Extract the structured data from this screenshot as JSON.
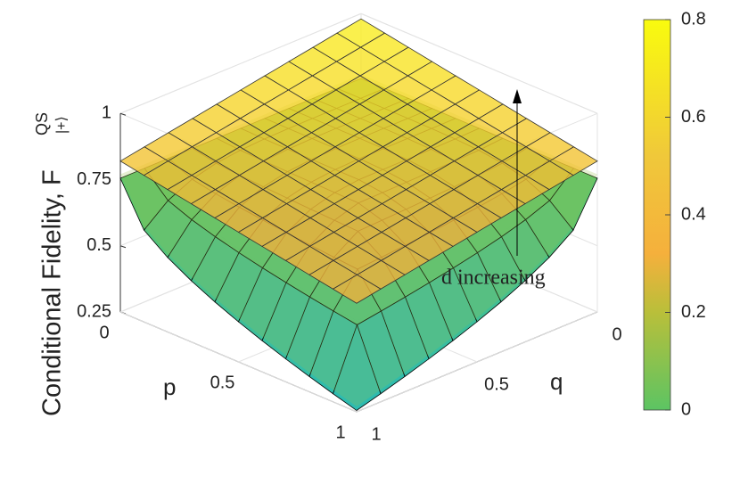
{
  "chart_data": {
    "type": "surface",
    "zlabel": {
      "text": "Conditional Fidelity, F",
      "superscript": "QS",
      "subscript": "|+⟩"
    },
    "xlabel": "p",
    "ylabel": "q",
    "xlim": [
      0,
      1
    ],
    "xticks": [
      0,
      0.5,
      1
    ],
    "ylim": [
      0,
      1
    ],
    "yticks": [
      0,
      0.5,
      1
    ],
    "zlim": [
      0.25,
      1
    ],
    "zticks": [
      0.25,
      0.5,
      0.75,
      1
    ],
    "clim": [
      0,
      0.8
    ],
    "cticks": [
      0,
      0.2,
      0.4,
      0.6,
      0.8
    ],
    "annotation": "d increasing"
  }
}
